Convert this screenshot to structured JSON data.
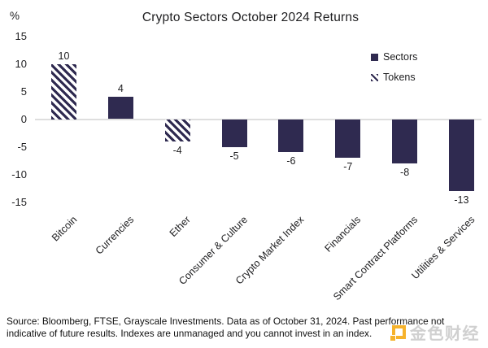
{
  "chart": {
    "title": "Crypto Sectors October 2024 Returns",
    "unit_label": "%",
    "legend": [
      {
        "label": "Sectors",
        "style": "solid"
      },
      {
        "label": "Tokens",
        "style": "hatched"
      }
    ]
  },
  "chart_data": {
    "type": "bar",
    "title": "Crypto Sectors October 2024 Returns",
    "categories": [
      "Bitcoin",
      "Currencies",
      "Ether",
      "Consumer & Culture",
      "Crypto Market Index",
      "Financials",
      "Smart Contract Platforms",
      "Utilities & Services"
    ],
    "values": [
      10,
      4,
      -4,
      -5,
      -6,
      -7,
      -8,
      -13
    ],
    "bar_styles": [
      "hatched",
      "solid",
      "hatched",
      "solid",
      "solid",
      "solid",
      "solid",
      "solid"
    ],
    "data_labels": [
      "10",
      "4",
      "-4",
      "-5",
      "-6",
      "-7",
      "-8",
      "-13"
    ],
    "xlabel": "",
    "ylabel": "%",
    "yticks": [
      15,
      10,
      5,
      0,
      -5,
      -10,
      -15
    ],
    "ylim": [
      -15,
      15
    ],
    "grid": "zero-line-only",
    "legend_entries": [
      "Sectors",
      "Tokens"
    ],
    "legend_position": "upper-right"
  },
  "colors": {
    "bar_fill": "#2f2a50",
    "zero_line": "#dedede",
    "text": "#1d1d1f",
    "watermark_gold": "#f5a300",
    "watermark_text": "#c6c6c6"
  },
  "footer": {
    "line1": "Source: Bloomberg, FTSE, Grayscale Investments. Data as of October 31, 2024. Past performance not",
    "line2": "indicative of future results. Indexes are unmanaged and you cannot invest in an index."
  },
  "watermark": {
    "text": "金色财经"
  }
}
